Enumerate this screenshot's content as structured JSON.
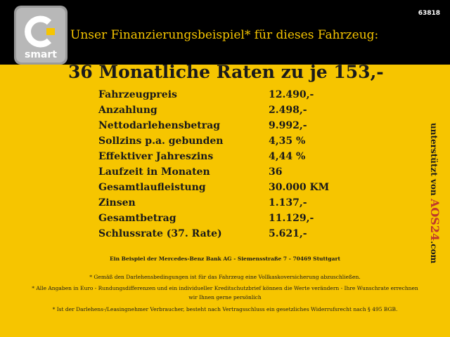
{
  "header": {
    "id": "63818",
    "brand": "smart",
    "title": "Unser Finanzierungsbeispiel* für dieses Fahrzeug:"
  },
  "headline": "36 Monatliche Raten zu je 153,-",
  "table": {
    "rows": [
      [
        "Fahrzeugpreis",
        "12.490,-"
      ],
      [
        "Anzahlung",
        "2.498,-"
      ],
      [
        "Nettodarlehensbetrag",
        "9.992,-"
      ],
      [
        "Sollzins p.a. gebunden",
        "4,35 %"
      ],
      [
        "Effektiver Jahreszins",
        "4,44 %"
      ],
      [
        "Laufzeit in Monaten",
        "36"
      ],
      [
        "Gesamtlaufleistung",
        "30.000 KM"
      ],
      [
        "Zinsen",
        "1.137,-"
      ],
      [
        "Gesamtbetrag",
        "11.129,-"
      ],
      [
        "Schlussrate (37. Rate)",
        "5.621,-"
      ]
    ]
  },
  "sidebar": {
    "prefix": "unterstützt von",
    "brand": "AOS24",
    "suffix": ".com"
  },
  "bank": "Ein Beispiel der Mercedes-Benz Bank AG - Siemensstraße 7 - 70469 Stuttgart",
  "footnotes": [
    "* Gemäß den Darlehensbedingungen ist für das Fahrzeug eine Vollkaskoversicherung abzuschließen.",
    "* Alle Angaben in Euro - Rundungsdifferenzen und ein individueller Kreditschutzbrief können die Werte verändern - Ihre Wunschrate errechnen wir Ihnen gerne persönlich",
    "* Ist der Darlehens-/Leasingnehmer Verbraucher, besteht nach Vertragsschluss ein gesetzliches Widerrufsrecht nach § 495 BGB."
  ]
}
